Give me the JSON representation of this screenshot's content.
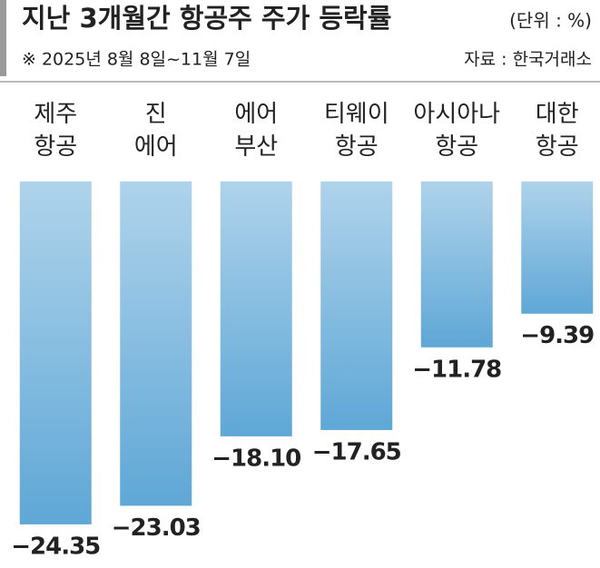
{
  "chart_data": {
    "type": "bar",
    "title": "지난 3개월간 항공주 주가 등락률",
    "unit": "(단위 : %)",
    "note": "※ 2025년 8월 8일~11월 7일",
    "source": "자료 : 한국거래소",
    "categories": [
      [
        "제주",
        "항공"
      ],
      [
        "진",
        "에어"
      ],
      [
        "에어",
        "부산"
      ],
      [
        "티웨이",
        "항공"
      ],
      [
        "아시아나",
        "항공"
      ],
      [
        "대한",
        "항공"
      ]
    ],
    "values": [
      -24.35,
      -23.03,
      -18.1,
      -17.65,
      -11.78,
      -9.39
    ],
    "value_labels": [
      "−24.35",
      "−23.03",
      "−18.10",
      "−17.65",
      "−11.78",
      "−9.39"
    ],
    "color": "#5fa7d6",
    "ylim": [
      -25,
      0
    ]
  }
}
